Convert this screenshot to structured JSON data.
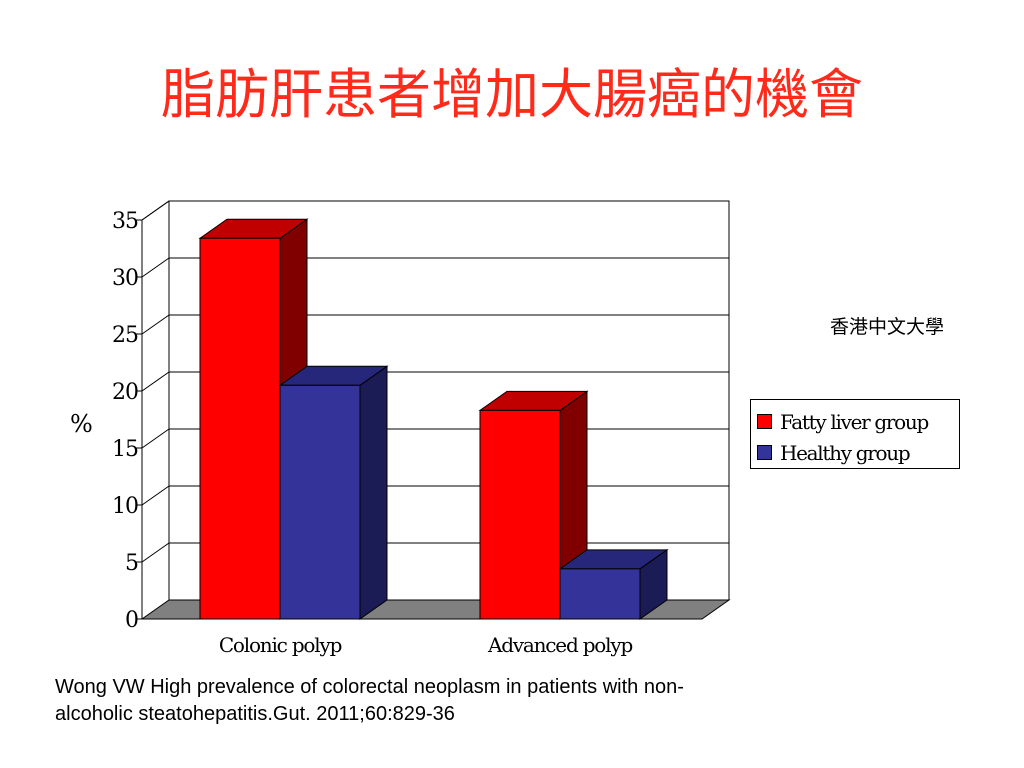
{
  "slide": {
    "title": "脂肪肝患者增加大腸癌的機會",
    "institution": "香港中文大學",
    "citation_line1": "Wong VW High prevalence of colorectal neoplasm in patients with non-",
    "citation_line2": "alcoholic steatohepatitis.Gut. 2011;60:829-36"
  },
  "chart_data": {
    "type": "bar",
    "style": "3d-clustered",
    "categories": [
      "Colonic polyp",
      "Advanced polyp"
    ],
    "series": [
      {
        "name": "Fatty liver group",
        "values": [
          33.4,
          18.3
        ],
        "color": "#ff0000",
        "side_color": "#800000",
        "top_color": "#c00000"
      },
      {
        "name": "Healthy group",
        "values": [
          20.5,
          4.4
        ],
        "color": "#333399",
        "side_color": "#1b1b55",
        "top_color": "#26267a"
      }
    ],
    "ylabel": "%",
    "ylim": [
      0,
      35
    ],
    "yticks": [
      0,
      5,
      10,
      15,
      20,
      25,
      30,
      35
    ],
    "grid": true,
    "floor_color": "#808080",
    "legend_position": "right"
  }
}
